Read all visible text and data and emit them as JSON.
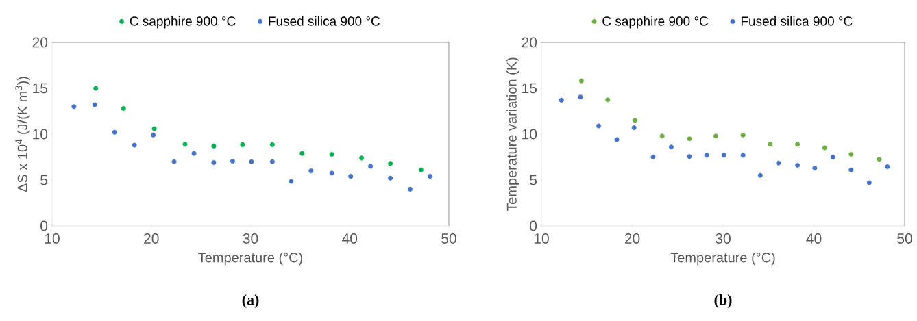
{
  "chart_data": [
    {
      "type": "scatter",
      "xlabel": "Temperature (°C)",
      "ylabel": "ΔS x 10$^{4}$ (J/(K m$^{3}$))",
      "annotations": [
        "(a)"
      ],
      "xlim": [
        10,
        50
      ],
      "ylim": [
        0,
        20
      ],
      "xticks": [
        10,
        20,
        30,
        40,
        50
      ],
      "yticks": [
        0,
        5,
        10,
        15,
        20
      ],
      "grid": false,
      "legend": "top",
      "marker": "circle",
      "series": [
        {
          "name": "C sapphire 900 °C",
          "color": "#00b050",
          "x": [
            14.4,
            17.2,
            20.3,
            23.4,
            26.3,
            29.2,
            32.2,
            35.2,
            38.2,
            41.2,
            44.1,
            47.2
          ],
          "values": [
            15.0,
            12.8,
            10.6,
            8.9,
            8.7,
            8.85,
            8.85,
            7.9,
            7.8,
            7.4,
            6.8,
            6.1
          ]
        },
        {
          "name": "Fused silica 900 °C",
          "color": "#4472c4",
          "x": [
            12.2,
            14.3,
            16.3,
            18.3,
            20.2,
            22.3,
            24.3,
            26.3,
            28.2,
            30.1,
            32.2,
            34.1,
            36.1,
            38.2,
            40.1,
            42.1,
            44.1,
            46.1,
            48.1
          ],
          "values": [
            13.0,
            13.2,
            10.2,
            8.8,
            9.9,
            7.0,
            7.9,
            6.9,
            7.05,
            7.0,
            7.0,
            4.85,
            6.0,
            5.75,
            5.4,
            6.5,
            5.2,
            4.0,
            5.4
          ]
        }
      ]
    },
    {
      "type": "scatter",
      "xlabel": "Temperature (°C)",
      "ylabel": "Temperature variation (K)",
      "annotations": [
        "(b)"
      ],
      "xlim": [
        10,
        50
      ],
      "ylim": [
        0,
        20
      ],
      "xticks": [
        10,
        20,
        30,
        40,
        50
      ],
      "yticks": [
        0,
        5,
        10,
        15,
        20
      ],
      "grid": false,
      "legend": "top",
      "marker": "circle",
      "series": [
        {
          "name": "C sapphire 900 °C",
          "color": "#70ad47",
          "x": [
            14.4,
            17.3,
            20.3,
            23.3,
            26.3,
            29.2,
            32.2,
            35.2,
            38.2,
            41.2,
            44.1,
            47.2
          ],
          "values": [
            15.8,
            13.75,
            11.5,
            9.8,
            9.5,
            9.8,
            9.9,
            8.9,
            8.9,
            8.5,
            7.8,
            7.25
          ]
        },
        {
          "name": "Fused silica 900 °C",
          "color": "#4472c4",
          "x": [
            12.2,
            14.3,
            16.3,
            18.3,
            20.2,
            22.3,
            24.3,
            26.3,
            28.2,
            30.1,
            32.2,
            34.1,
            36.1,
            38.2,
            40.1,
            42.1,
            44.1,
            46.1,
            48.1
          ],
          "values": [
            13.7,
            14.05,
            10.9,
            9.4,
            10.7,
            7.5,
            8.6,
            7.55,
            7.7,
            7.7,
            7.7,
            5.5,
            6.85,
            6.6,
            6.3,
            7.5,
            6.1,
            4.7,
            6.45
          ]
        }
      ]
    }
  ]
}
